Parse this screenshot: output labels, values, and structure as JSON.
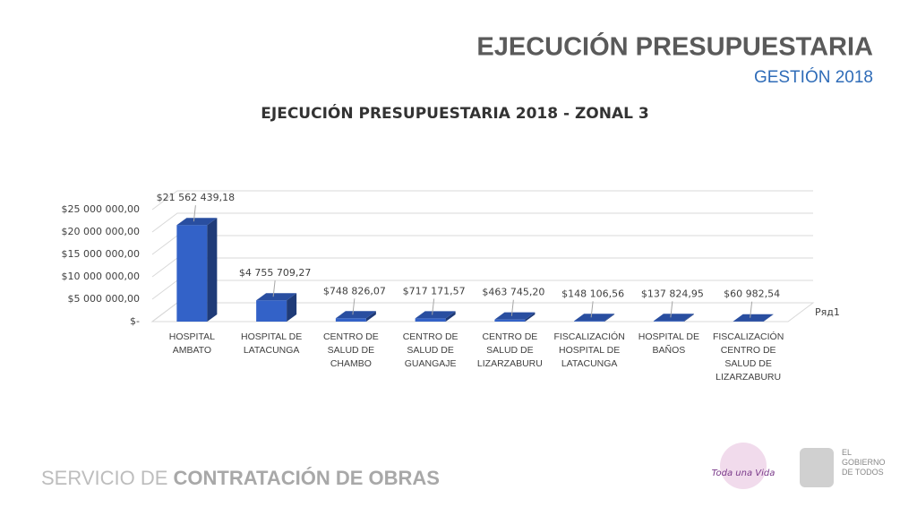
{
  "header": {
    "title": "EJECUCIÓN PRESUPUESTARIA",
    "subtitle": "GESTIÓN 2018"
  },
  "chart_data": {
    "type": "bar3d",
    "title": "EJECUCIÓN PRESUPUESTARIA 2018 - ZONAL 3",
    "categories": [
      "HOSPITAL AMBATO",
      "HOSPITAL DE LATACUNGA",
      "CENTRO DE SALUD DE CHAMBO",
      "CENTRO DE SALUD DE GUANGAJE",
      "CENTRO DE SALUD DE LIZARZABURU",
      "FISCALIZACIÓN HOSPITAL DE LATACUNGA",
      "HOSPITAL DE BAÑOS",
      "FISCALIZACIÓN CENTRO DE SALUD DE LIZARZABURU"
    ],
    "series": [
      {
        "name": "Ряд1",
        "color": "#3362c8",
        "values": [
          21562439.18,
          4755709.27,
          748826.07,
          717171.57,
          463745.2,
          148106.56,
          137824.95,
          60982.54
        ],
        "value_labels": [
          "$21 562 439,18",
          "$4 755 709,27",
          "$748 826,07",
          "$717 171,57",
          "$463 745,20",
          "$148 106,56",
          "$137 824,95",
          "$60 982,54"
        ]
      }
    ],
    "ylim": [
      0,
      25000000
    ],
    "yticks": [
      {
        "value": 0,
        "label": "$-"
      },
      {
        "value": 5000000,
        "label": "$5 000 000,00"
      },
      {
        "value": 10000000,
        "label": "$10 000 000,00"
      },
      {
        "value": 15000000,
        "label": "$15 000 000,00"
      },
      {
        "value": 20000000,
        "label": "$20 000 000,00"
      },
      {
        "value": 25000000,
        "label": "$25 000 000,00"
      }
    ],
    "grid": true,
    "legend": "right"
  },
  "footer": {
    "prefix": "SERVICIO DE",
    "name": "CONTRATACIÓN DE OBRAS"
  },
  "logos": {
    "campaign": "Toda una Vida",
    "government": "EL GOBIERNO DE TODOS"
  }
}
